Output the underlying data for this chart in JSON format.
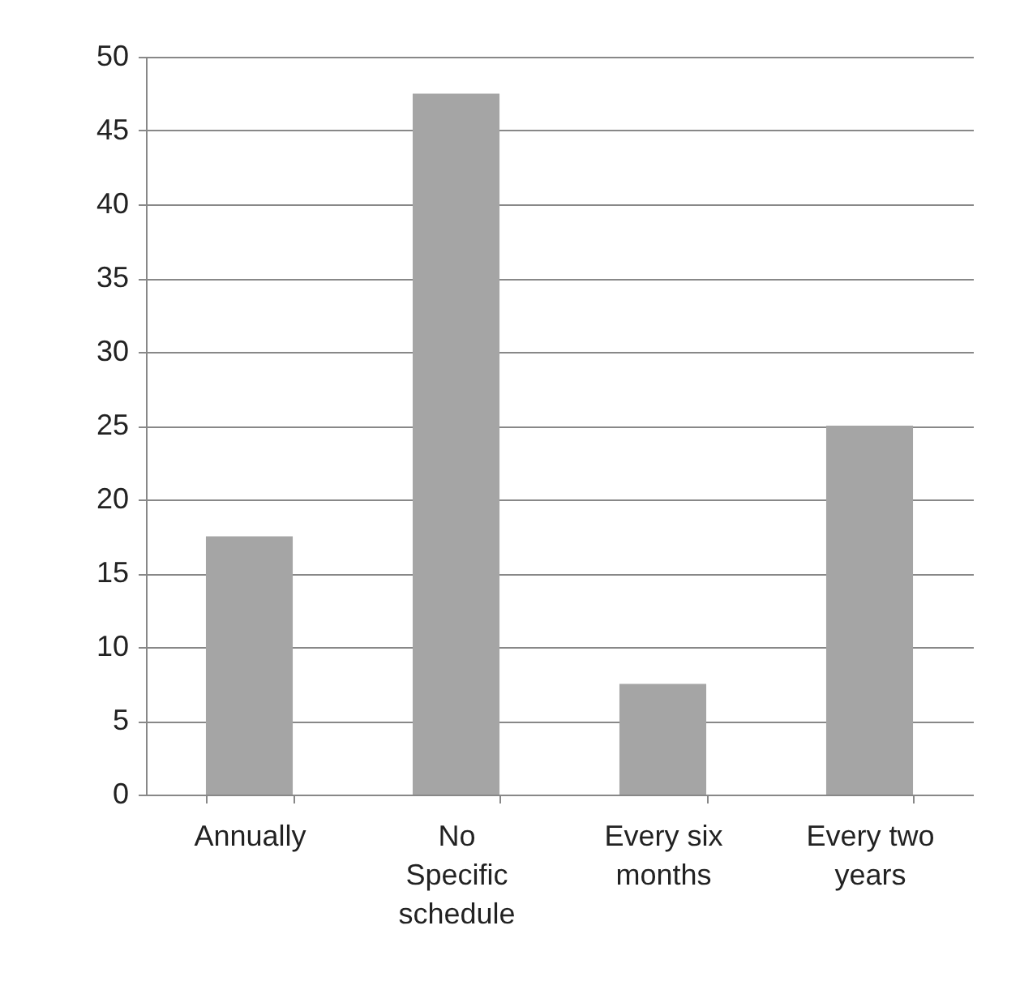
{
  "chart_data": {
    "type": "bar",
    "categories": [
      "Annually",
      "No Specific schedule",
      "Every six months",
      "Every two years"
    ],
    "values": [
      17.5,
      47.5,
      7.5,
      25
    ],
    "color": "#a5a5a5",
    "ylim": [
      0,
      50
    ],
    "yticks": [
      0,
      5,
      10,
      15,
      20,
      25,
      30,
      35,
      40,
      45,
      50
    ],
    "grid": "y"
  }
}
